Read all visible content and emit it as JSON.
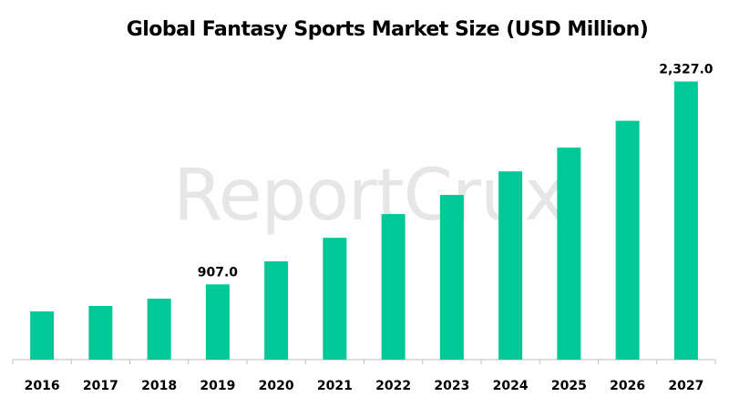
{
  "chart_data": {
    "type": "bar",
    "title": "Global Fantasy Sports Market Size (USD Million)",
    "watermark": "ReportCrux",
    "categories": [
      "2016",
      "2017",
      "2018",
      "2019",
      "2020",
      "2021",
      "2022",
      "2023",
      "2024",
      "2025",
      "2026",
      "2027"
    ],
    "values": [
      718,
      756,
      807,
      907,
      1068,
      1233,
      1399,
      1533,
      1698,
      1864,
      2052,
      2327
    ],
    "data_labels": {
      "3": "907.0",
      "11": "2,327.0"
    },
    "xlabel": "",
    "ylabel": "",
    "ylim": [
      380,
      2330
    ],
    "grid": false,
    "y_axis_visible": false,
    "bar_color": "#00c896"
  }
}
